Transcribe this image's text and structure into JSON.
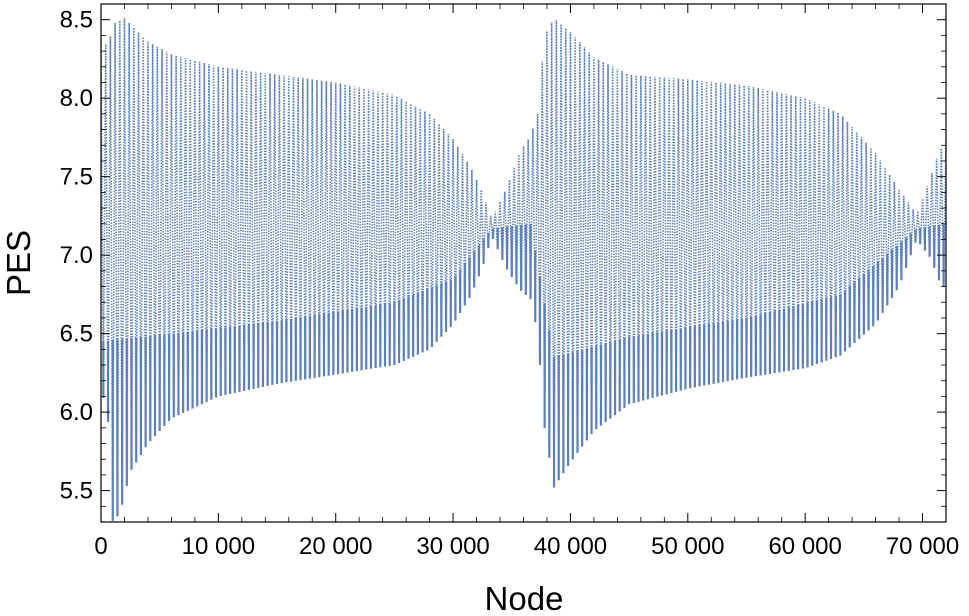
{
  "chart_data": {
    "type": "line",
    "title": "",
    "xlabel": "Node",
    "ylabel": "PES",
    "xlim": [
      0,
      72000
    ],
    "ylim": [
      5.3,
      8.6
    ],
    "grid": false,
    "legend": "none",
    "x_ticks": [
      0,
      10000,
      20000,
      30000,
      40000,
      50000,
      60000,
      70000
    ],
    "x_tick_labels": [
      "0",
      "10 000",
      "20 000",
      "30 000",
      "40 000",
      "50 000",
      "60 000",
      "70 000"
    ],
    "y_ticks": [
      5.5,
      6.0,
      6.5,
      7.0,
      7.5,
      8.0,
      8.5
    ],
    "y_tick_labels": [
      "5.5",
      "6.0",
      "6.5",
      "7.0",
      "7.5",
      "8.0",
      "8.5"
    ],
    "line_color": "#5b7fb8",
    "series": [
      {
        "name": "",
        "oscillation_nodes_per_cycle": 400,
        "envelope_upper": [
          {
            "x": 0,
            "y": 8.4
          },
          {
            "x": 500,
            "y": 8.33
          },
          {
            "x": 1200,
            "y": 8.48
          },
          {
            "x": 2000,
            "y": 8.51
          },
          {
            "x": 4000,
            "y": 8.36
          },
          {
            "x": 6000,
            "y": 8.28
          },
          {
            "x": 10000,
            "y": 8.2
          },
          {
            "x": 15000,
            "y": 8.15
          },
          {
            "x": 20000,
            "y": 8.1
          },
          {
            "x": 25000,
            "y": 8.02
          },
          {
            "x": 28000,
            "y": 7.9
          },
          {
            "x": 30000,
            "y": 7.74
          },
          {
            "x": 31500,
            "y": 7.56
          },
          {
            "x": 32500,
            "y": 7.4
          },
          {
            "x": 33300,
            "y": 7.23
          },
          {
            "x": 34500,
            "y": 7.42
          },
          {
            "x": 35700,
            "y": 7.66
          },
          {
            "x": 36600,
            "y": 7.76
          },
          {
            "x": 37200,
            "y": 7.9
          },
          {
            "x": 37800,
            "y": 8.4
          },
          {
            "x": 38600,
            "y": 8.51
          },
          {
            "x": 40000,
            "y": 8.42
          },
          {
            "x": 42000,
            "y": 8.26
          },
          {
            "x": 45000,
            "y": 8.15
          },
          {
            "x": 50000,
            "y": 8.12
          },
          {
            "x": 55000,
            "y": 8.08
          },
          {
            "x": 60000,
            "y": 8.0
          },
          {
            "x": 63000,
            "y": 7.9
          },
          {
            "x": 66000,
            "y": 7.65
          },
          {
            "x": 68000,
            "y": 7.42
          },
          {
            "x": 69500,
            "y": 7.26
          },
          {
            "x": 70700,
            "y": 7.5
          },
          {
            "x": 71400,
            "y": 7.66
          },
          {
            "x": 72000,
            "y": 7.72
          }
        ],
        "envelope_lower": [
          {
            "x": 0,
            "y": 6.05
          },
          {
            "x": 500,
            "y": 6.15
          },
          {
            "x": 900,
            "y": 5.3
          },
          {
            "x": 1600,
            "y": 5.35
          },
          {
            "x": 2500,
            "y": 5.62
          },
          {
            "x": 4000,
            "y": 5.8
          },
          {
            "x": 6000,
            "y": 5.96
          },
          {
            "x": 10000,
            "y": 6.1
          },
          {
            "x": 15000,
            "y": 6.18
          },
          {
            "x": 20000,
            "y": 6.24
          },
          {
            "x": 25000,
            "y": 6.3
          },
          {
            "x": 28000,
            "y": 6.4
          },
          {
            "x": 30000,
            "y": 6.56
          },
          {
            "x": 31500,
            "y": 6.74
          },
          {
            "x": 32500,
            "y": 6.92
          },
          {
            "x": 33300,
            "y": 7.12
          },
          {
            "x": 34500,
            "y": 6.92
          },
          {
            "x": 35700,
            "y": 6.78
          },
          {
            "x": 36600,
            "y": 6.72
          },
          {
            "x": 37200,
            "y": 6.5
          },
          {
            "x": 37800,
            "y": 5.9
          },
          {
            "x": 38600,
            "y": 5.52
          },
          {
            "x": 40000,
            "y": 5.68
          },
          {
            "x": 42000,
            "y": 5.88
          },
          {
            "x": 45000,
            "y": 6.05
          },
          {
            "x": 50000,
            "y": 6.15
          },
          {
            "x": 55000,
            "y": 6.22
          },
          {
            "x": 60000,
            "y": 6.28
          },
          {
            "x": 63000,
            "y": 6.36
          },
          {
            "x": 66000,
            "y": 6.56
          },
          {
            "x": 68000,
            "y": 6.8
          },
          {
            "x": 69500,
            "y": 7.1
          },
          {
            "x": 70700,
            "y": 6.98
          },
          {
            "x": 71400,
            "y": 6.84
          },
          {
            "x": 72000,
            "y": 6.78
          }
        ],
        "envelope_middle": [
          {
            "x": 0,
            "y": 6.45
          },
          {
            "x": 6000,
            "y": 6.5
          },
          {
            "x": 15000,
            "y": 6.58
          },
          {
            "x": 25000,
            "y": 6.7
          },
          {
            "x": 30000,
            "y": 6.85
          },
          {
            "x": 33300,
            "y": 7.17
          },
          {
            "x": 36600,
            "y": 7.2
          },
          {
            "x": 38600,
            "y": 6.35
          },
          {
            "x": 45000,
            "y": 6.48
          },
          {
            "x": 55000,
            "y": 6.6
          },
          {
            "x": 63000,
            "y": 6.75
          },
          {
            "x": 69500,
            "y": 7.17
          },
          {
            "x": 72000,
            "y": 7.2
          }
        ]
      }
    ]
  }
}
